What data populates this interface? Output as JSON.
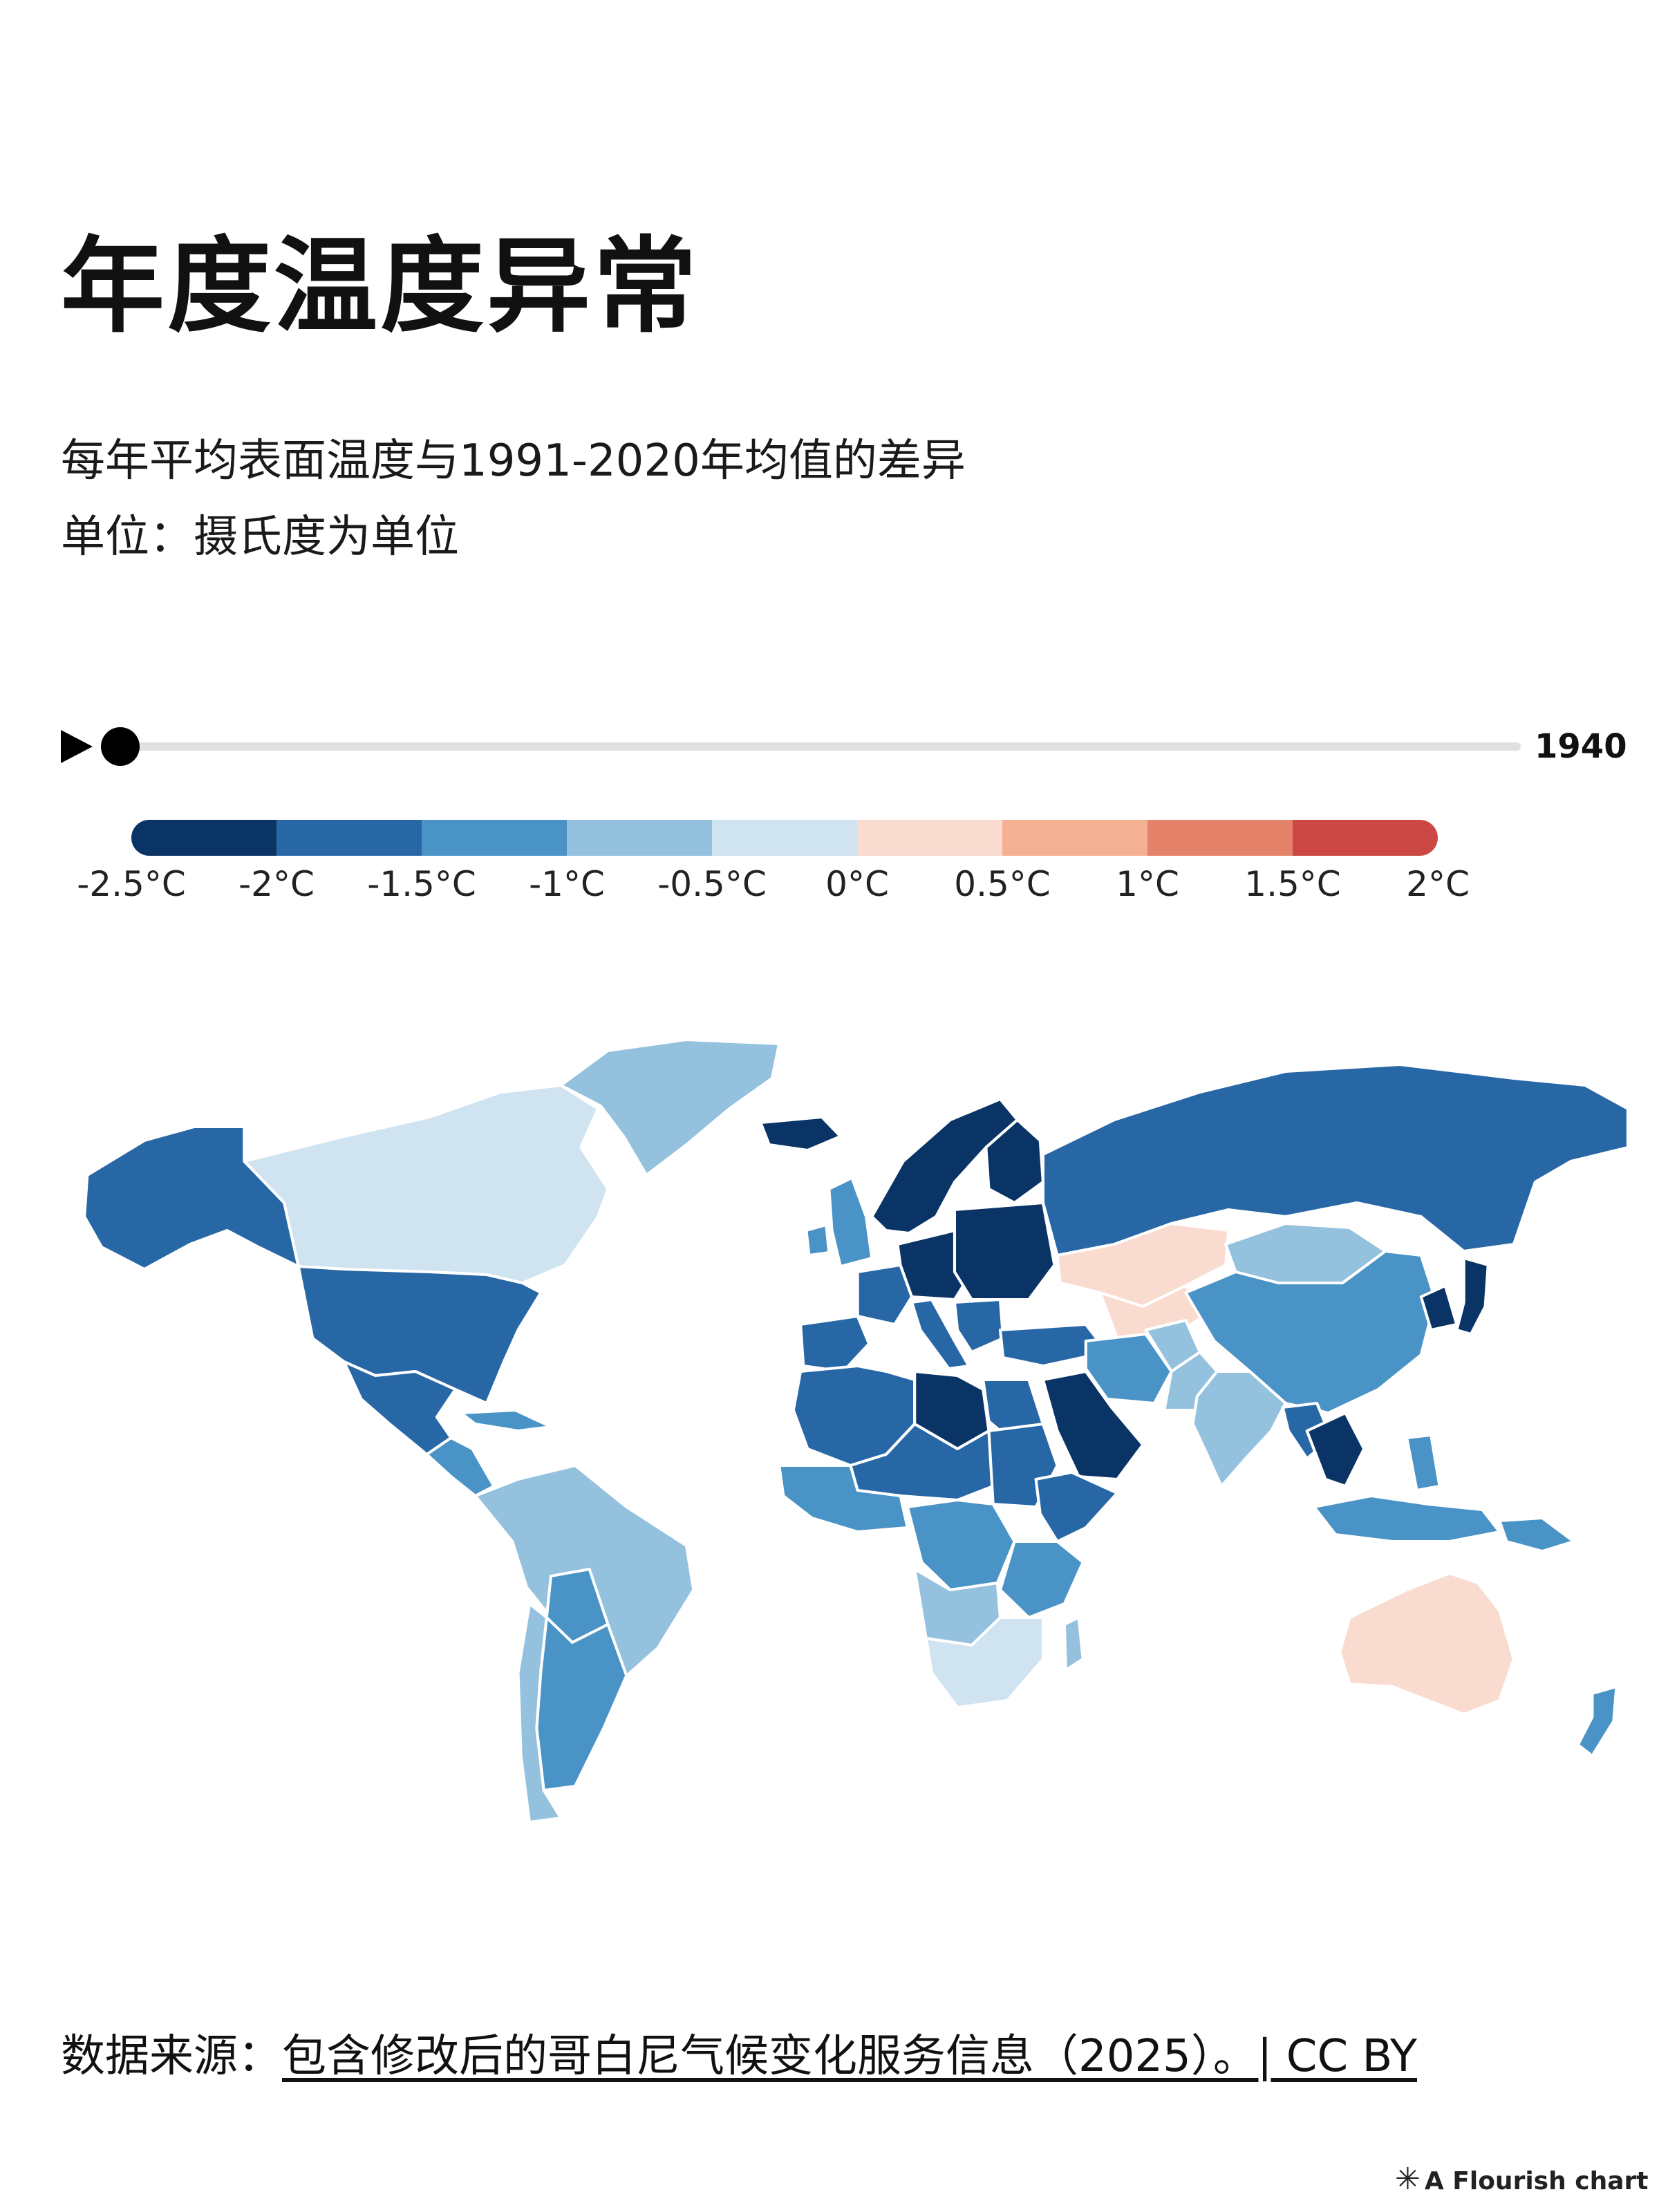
{
  "title": "年度温度异常",
  "subtitle": [
    "每年平均表面温度与1991-2020年均值的差异",
    "单位：摄氏度为单位"
  ],
  "timeline": {
    "year": "1940",
    "progress": 0.0
  },
  "legend": {
    "colors": [
      "#0b3466",
      "#2867a6",
      "#4a93c6",
      "#93c1de",
      "#cfe3f0",
      "#fadbcf",
      "#f3b092",
      "#e5836a",
      "#cb4844"
    ],
    "labels": [
      "-2.5°C",
      "-2°C",
      "-1.5°C",
      "-1°C",
      "-0.5°C",
      "0°C",
      "0.5°C",
      "1°C",
      "1.5°C",
      "2°C"
    ]
  },
  "source": {
    "prefix": "数据来源：",
    "link": "包含修改后的哥白尼气候变化服务信息（2025）。| CC BY"
  },
  "credit": {
    "text": "A Flourish chart",
    "icon": "asterisk-icon"
  },
  "chart_data": {
    "type": "choropleth",
    "year": 1940,
    "unit": "°C",
    "scale_bins": [
      -2.5,
      -2,
      -1.5,
      -1,
      -0.5,
      0,
      0.5,
      1,
      1.5,
      2
    ],
    "regions": [
      {
        "name": "Canada",
        "value": -0.3
      },
      {
        "name": "Alaska",
        "value": -1.7
      },
      {
        "name": "Greenland",
        "value": -0.8
      },
      {
        "name": "United States",
        "value": -1.8
      },
      {
        "name": "Mexico",
        "value": -1.8
      },
      {
        "name": "Central America",
        "value": -1.3
      },
      {
        "name": "Caribbean",
        "value": -1.3
      },
      {
        "name": "South America North",
        "value": -0.8
      },
      {
        "name": "Bolivia",
        "value": -1.3
      },
      {
        "name": "Argentina",
        "value": -1.3
      },
      {
        "name": "Chile",
        "value": -0.8
      },
      {
        "name": "Iceland",
        "value": -2.3
      },
      {
        "name": "Ireland",
        "value": -1.3
      },
      {
        "name": "United Kingdom",
        "value": -1.3
      },
      {
        "name": "Scandinavia",
        "value": -2.3
      },
      {
        "name": "Finland",
        "value": -2.3
      },
      {
        "name": "Iberia",
        "value": -1.8
      },
      {
        "name": "France",
        "value": -1.8
      },
      {
        "name": "Central Europe",
        "value": -2.3
      },
      {
        "name": "Eastern Europe",
        "value": -2.3
      },
      {
        "name": "Italy",
        "value": -1.8
      },
      {
        "name": "Balkans",
        "value": -1.8
      },
      {
        "name": "Turkey",
        "value": -1.8
      },
      {
        "name": "Russia",
        "value": -1.8
      },
      {
        "name": "Kazakhstan",
        "value": 0.2
      },
      {
        "name": "Central Asia",
        "value": 0.2
      },
      {
        "name": "Mongolia",
        "value": -0.8
      },
      {
        "name": "China",
        "value": -1.3
      },
      {
        "name": "Korea",
        "value": -2.3
      },
      {
        "name": "Japan",
        "value": -2.3
      },
      {
        "name": "Iran",
        "value": -1.3
      },
      {
        "name": "Afghanistan",
        "value": -0.8
      },
      {
        "name": "Pakistan",
        "value": -0.8
      },
      {
        "name": "India",
        "value": -0.8
      },
      {
        "name": "Southeast Asia",
        "value": -1.8
      },
      {
        "name": "Indochina",
        "value": -2.3
      },
      {
        "name": "Indonesia",
        "value": -1.3
      },
      {
        "name": "Philippines",
        "value": -1.3
      },
      {
        "name": "Papua New Guinea",
        "value": -1.3
      },
      {
        "name": "Arabian Peninsula",
        "value": -2.3
      },
      {
        "name": "North Africa West",
        "value": -1.8
      },
      {
        "name": "Libya",
        "value": -2.3
      },
      {
        "name": "Egypt",
        "value": -1.8
      },
      {
        "name": "Sahel",
        "value": -1.8
      },
      {
        "name": "Sudan",
        "value": -1.8
      },
      {
        "name": "Horn of Africa",
        "value": -1.8
      },
      {
        "name": "West Africa",
        "value": -1.3
      },
      {
        "name": "Central Africa",
        "value": -1.3
      },
      {
        "name": "East Africa",
        "value": -1.3
      },
      {
        "name": "Angola",
        "value": -0.8
      },
      {
        "name": "Southern Africa",
        "value": -0.3
      },
      {
        "name": "Madagascar",
        "value": -0.8
      },
      {
        "name": "Australia",
        "value": 0.2
      },
      {
        "name": "New Zealand",
        "value": -1.3
      }
    ]
  }
}
